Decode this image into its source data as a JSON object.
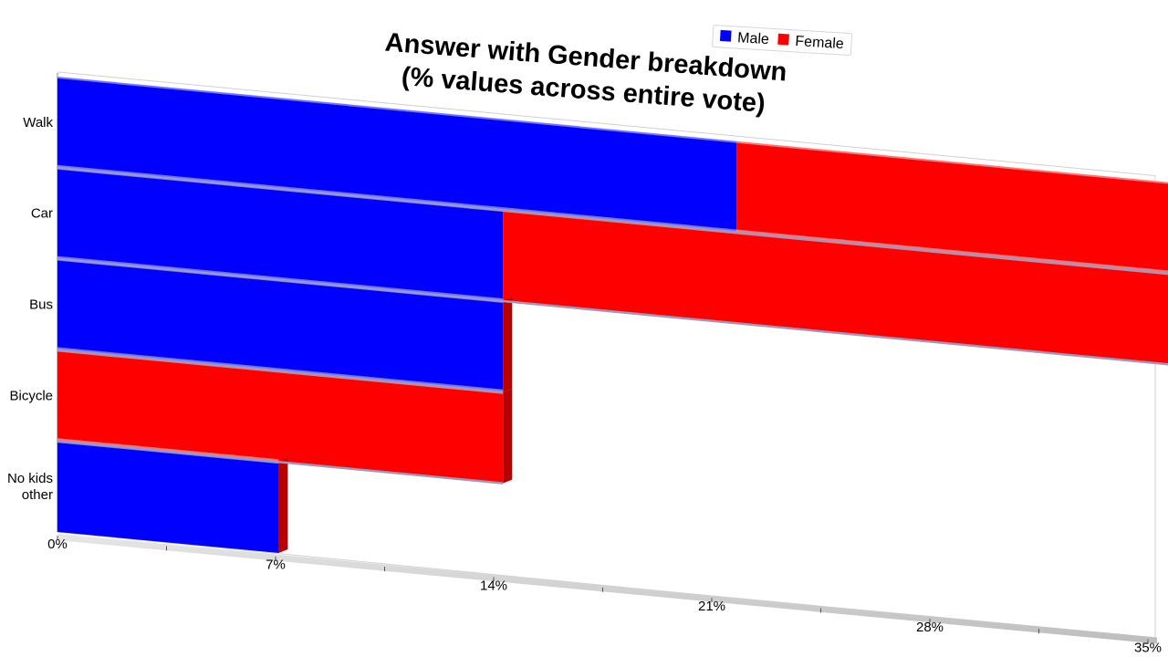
{
  "chart_data": {
    "type": "bar",
    "orientation": "horizontal",
    "stacked": true,
    "title": [
      "Answer with Gender breakdown",
      "(% values across entire vote)"
    ],
    "categories": [
      "Walk",
      "Car",
      "Bus",
      "Bicycle",
      "No kids other"
    ],
    "category_labels": [
      [
        "Walk"
      ],
      [
        "Car"
      ],
      [
        "Bus"
      ],
      [
        "Bicycle"
      ],
      [
        "No kids",
        "other"
      ]
    ],
    "series": [
      {
        "name": "Male",
        "color": "#0000ff",
        "values": [
          21.8,
          14.3,
          14.3,
          0,
          7.1
        ]
      },
      {
        "name": "Female",
        "color": "#ff0000",
        "values": [
          14.3,
          21.8,
          0,
          14.3,
          0
        ]
      }
    ],
    "xlim": [
      0,
      35
    ],
    "x_ticks": [
      "0%",
      "7%",
      "14%",
      "21%",
      "28%",
      "35%"
    ],
    "legend_position": "top-right",
    "style": "3d-perspective"
  }
}
